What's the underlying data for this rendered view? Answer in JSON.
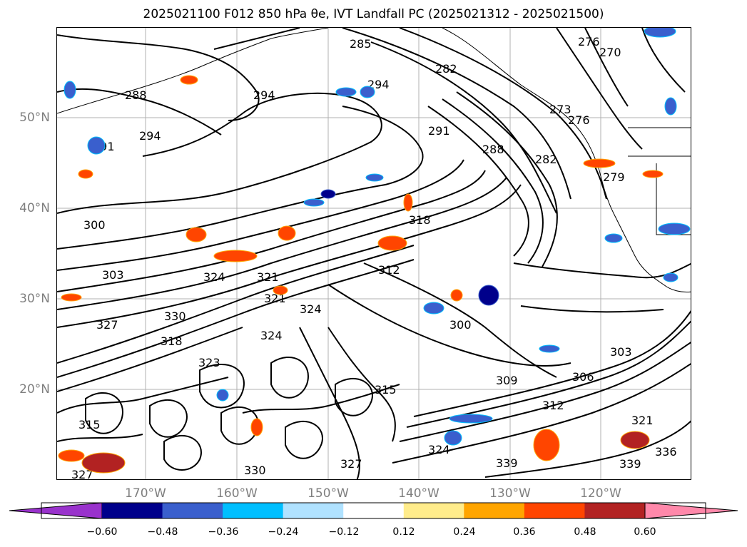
{
  "title": "2025021100 F012 850 hPa θe, IVT Landfall PC (2025021312 - 2025021500)",
  "axes": {
    "lat_labels": [
      "50°N",
      "40°N",
      "30°N",
      "20°N"
    ],
    "lon_labels": [
      "170°W",
      "160°W",
      "150°W",
      "140°W",
      "130°W",
      "120°W"
    ]
  },
  "contour_labels": [
    "285",
    "291",
    "294",
    "282",
    "276",
    "270",
    "288",
    "294",
    "273",
    "276",
    "291",
    "294",
    "288",
    "282",
    "279",
    "300",
    "318",
    "303",
    "312",
    "324",
    "321",
    "330",
    "327",
    "318",
    "321",
    "324",
    "300",
    "309",
    "303",
    "306",
    "315",
    "312",
    "321",
    "336",
    "324",
    "339",
    "339",
    "327",
    "330",
    "323",
    "324",
    "327",
    "315"
  ],
  "colorbar": {
    "tick_labels": [
      "−0.60",
      "−0.48",
      "−0.36",
      "−0.24",
      "−0.12",
      "0.12",
      "0.24",
      "0.36",
      "0.48",
      "0.60"
    ],
    "colors": [
      "#9932cc",
      "#00008b",
      "#3a5fcd",
      "#00bfff",
      "#b0e2ff",
      "#ffffff",
      "#ffec8b",
      "#ffa500",
      "#ff4500",
      "#b22222",
      "#ff88aa"
    ]
  }
}
